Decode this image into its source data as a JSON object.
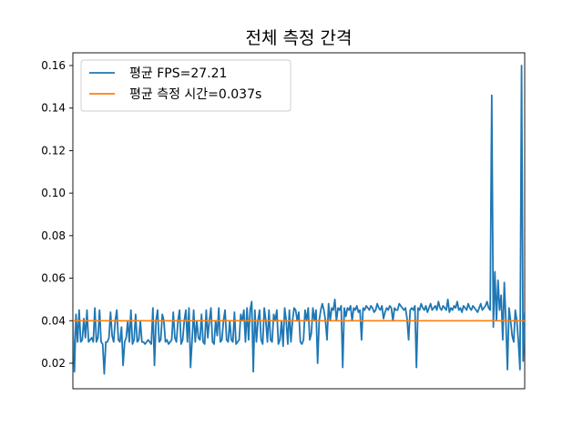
{
  "chart_data": {
    "type": "line",
    "title": "전체 측정 간격",
    "xlabel": "",
    "ylabel": "",
    "ylim": [
      0.008,
      0.166
    ],
    "xlim": [
      0,
      300
    ],
    "y_ticks": [
      0.02,
      0.04,
      0.06,
      0.08,
      0.1,
      0.12,
      0.14,
      0.16
    ],
    "y_tick_labels": [
      "0.02",
      "0.04",
      "0.06",
      "0.08",
      "0.10",
      "0.12",
      "0.14",
      "0.16"
    ],
    "x_ticks_visible": false,
    "grid": false,
    "legend_position": "top-left",
    "series": [
      {
        "name": "평균 FPS=27.21",
        "color": "#1f77b4",
        "values": [
          0.04,
          0.016,
          0.043,
          0.03,
          0.045,
          0.03,
          0.031,
          0.041,
          0.032,
          0.045,
          0.03,
          0.031,
          0.032,
          0.03,
          0.046,
          0.03,
          0.032,
          0.045,
          0.03,
          0.029,
          0.015,
          0.03,
          0.03,
          0.032,
          0.044,
          0.033,
          0.03,
          0.04,
          0.045,
          0.031,
          0.03,
          0.037,
          0.019,
          0.03,
          0.032,
          0.04,
          0.03,
          0.045,
          0.029,
          0.031,
          0.043,
          0.03,
          0.031,
          0.04,
          0.03,
          0.03,
          0.029,
          0.03,
          0.031,
          0.03,
          0.029,
          0.046,
          0.019,
          0.04,
          0.045,
          0.03,
          0.031,
          0.043,
          0.04,
          0.03,
          0.031,
          0.029,
          0.03,
          0.031,
          0.044,
          0.032,
          0.03,
          0.04,
          0.045,
          0.029,
          0.031,
          0.04,
          0.045,
          0.03,
          0.046,
          0.018,
          0.031,
          0.045,
          0.03,
          0.04,
          0.032,
          0.031,
          0.043,
          0.03,
          0.029,
          0.045,
          0.032,
          0.04,
          0.046,
          0.03,
          0.029,
          0.04,
          0.033,
          0.046,
          0.03,
          0.031,
          0.04,
          0.045,
          0.031,
          0.03,
          0.04,
          0.031,
          0.03,
          0.044,
          0.029,
          0.03,
          0.031,
          0.043,
          0.04,
          0.045,
          0.03,
          0.046,
          0.031,
          0.045,
          0.049,
          0.016,
          0.045,
          0.03,
          0.04,
          0.045,
          0.031,
          0.029,
          0.046,
          0.04,
          0.03,
          0.045,
          0.031,
          0.03,
          0.043,
          0.04,
          0.045,
          0.029,
          0.031,
          0.04,
          0.028,
          0.046,
          0.04,
          0.029,
          0.045,
          0.03,
          0.04,
          0.046,
          0.045,
          0.04,
          0.044,
          0.03,
          0.029,
          0.031,
          0.045,
          0.04,
          0.046,
          0.031,
          0.034,
          0.046,
          0.04,
          0.045,
          0.02,
          0.04,
          0.045,
          0.048,
          0.045,
          0.04,
          0.031,
          0.048,
          0.04,
          0.046,
          0.045,
          0.05,
          0.04,
          0.046,
          0.045,
          0.047,
          0.018,
          0.046,
          0.042,
          0.046,
          0.045,
          0.047,
          0.04,
          0.046,
          0.045,
          0.047,
          0.044,
          0.045,
          0.031,
          0.046,
          0.045,
          0.047,
          0.046,
          0.045,
          0.047,
          0.046,
          0.044,
          0.045,
          0.048,
          0.046,
          0.045,
          0.047,
          0.041,
          0.044,
          0.046,
          0.045,
          0.047,
          0.046,
          0.04,
          0.046,
          0.045,
          0.045,
          0.048,
          0.047,
          0.046,
          0.045,
          0.046,
          0.041,
          0.031,
          0.045,
          0.046,
          0.045,
          0.047,
          0.018,
          0.046,
          0.045,
          0.048,
          0.046,
          0.045,
          0.047,
          0.044,
          0.046,
          0.048,
          0.045,
          0.046,
          0.047,
          0.045,
          0.049,
          0.046,
          0.045,
          0.047,
          0.046,
          0.045,
          0.05,
          0.044,
          0.046,
          0.045,
          0.047,
          0.046,
          0.049,
          0.045,
          0.046,
          0.044,
          0.047,
          0.046,
          0.045,
          0.048,
          0.046,
          0.045,
          0.047,
          0.046,
          0.045,
          0.044,
          0.046,
          0.048,
          0.045,
          0.046,
          0.047,
          0.049,
          0.046,
          0.045,
          0.146,
          0.037,
          0.063,
          0.04,
          0.059,
          0.045,
          0.052,
          0.031,
          0.058,
          0.04,
          0.017,
          0.046,
          0.04,
          0.033,
          0.03,
          0.045,
          0.04,
          0.03,
          0.017,
          0.16,
          0.021,
          0.044
        ]
      },
      {
        "name": "평균 측정 시간=0.037s",
        "color": "#ff7f0e",
        "values": [
          0.04,
          0.04
        ]
      }
    ]
  }
}
